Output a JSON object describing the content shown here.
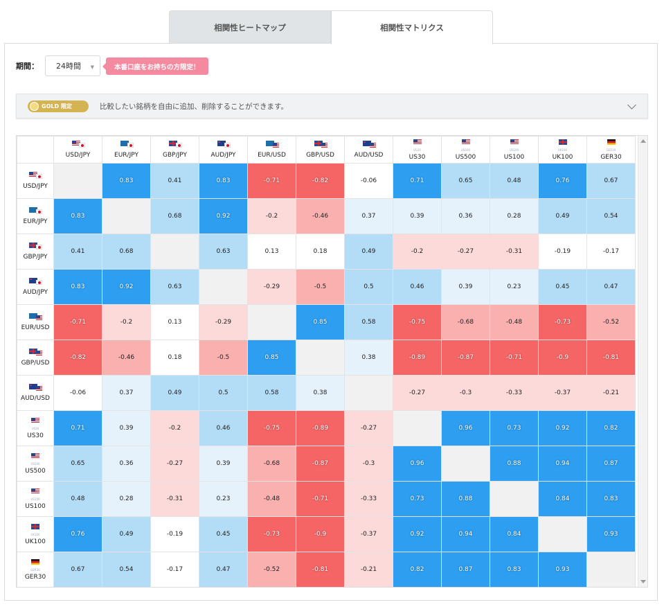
{
  "tabs": [
    {
      "label": "相関性ヒートマップ"
    },
    {
      "label": "相関性マトリクス"
    }
  ],
  "controls": {
    "period_label": "期間：",
    "period_value": "24時間",
    "live_badge": "本番口座をお持ちの方限定！"
  },
  "gold_bar": {
    "badge": "GOLD 限定",
    "text": "比較したい銘柄を自由に追加、削除することができます。"
  },
  "matrix": {
    "instruments": [
      {
        "label": "USD/JPY",
        "flags": [
          "us",
          "jp"
        ],
        "sub": ""
      },
      {
        "label": "EUR/JPY",
        "flags": [
          "eu",
          "jp"
        ],
        "sub": ""
      },
      {
        "label": "GBP/JPY",
        "flags": [
          "gb",
          "jp"
        ],
        "sub": ""
      },
      {
        "label": "AUD/JPY",
        "flags": [
          "au",
          "jp"
        ],
        "sub": ""
      },
      {
        "label": "EUR/USD",
        "flags": [
          "eu",
          "us"
        ],
        "sub": ""
      },
      {
        "label": "GBP/USD",
        "flags": [
          "gb",
          "us"
        ],
        "sub": ""
      },
      {
        "label": "AUD/USD",
        "flags": [
          "au",
          "us"
        ],
        "sub": ""
      },
      {
        "label": "US30",
        "flags": [
          "us"
        ],
        "sub": "US30"
      },
      {
        "label": "US500",
        "flags": [
          "us"
        ],
        "sub": "US500"
      },
      {
        "label": "US100",
        "flags": [
          "us"
        ],
        "sub": "US100"
      },
      {
        "label": "UK100",
        "flags": [
          "gb"
        ],
        "sub": "UK100"
      },
      {
        "label": "GER30",
        "flags": [
          "de"
        ],
        "sub": "GER30"
      }
    ],
    "values": [
      [
        null,
        "0.83",
        "0.41",
        "0.83",
        "-0.71",
        "-0.82",
        "-0.06",
        "0.71",
        "0.65",
        "0.48",
        "0.76",
        "0.67"
      ],
      [
        "0.83",
        null,
        "0.68",
        "0.92",
        "-0.2",
        "-0.46",
        "0.37",
        "0.39",
        "0.36",
        "0.28",
        "0.49",
        "0.54"
      ],
      [
        "0.41",
        "0.68",
        null,
        "0.63",
        "0.13",
        "0.18",
        "0.49",
        "-0.2",
        "-0.27",
        "-0.31",
        "-0.19",
        "-0.17"
      ],
      [
        "0.83",
        "0.92",
        "0.63",
        null,
        "-0.29",
        "-0.5",
        "0.5",
        "0.46",
        "0.39",
        "0.23",
        "0.45",
        "0.47"
      ],
      [
        "-0.71",
        "-0.2",
        "0.13",
        "-0.29",
        null,
        "0.85",
        "0.58",
        "-0.75",
        "-0.68",
        "-0.48",
        "-0.73",
        "-0.52"
      ],
      [
        "-0.82",
        "-0.46",
        "0.18",
        "-0.5",
        "0.85",
        null,
        "0.38",
        "-0.89",
        "-0.87",
        "-0.71",
        "-0.9",
        "-0.81"
      ],
      [
        "-0.06",
        "0.37",
        "0.49",
        "0.5",
        "0.58",
        "0.38",
        null,
        "-0.27",
        "-0.3",
        "-0.33",
        "-0.37",
        "-0.21"
      ],
      [
        "0.71",
        "0.39",
        "-0.2",
        "0.46",
        "-0.75",
        "-0.89",
        "-0.27",
        null,
        "0.96",
        "0.73",
        "0.92",
        "0.82"
      ],
      [
        "0.65",
        "0.36",
        "-0.27",
        "0.39",
        "-0.68",
        "-0.87",
        "-0.3",
        "0.96",
        null,
        "0.88",
        "0.94",
        "0.87"
      ],
      [
        "0.48",
        "0.28",
        "-0.31",
        "0.23",
        "-0.48",
        "-0.71",
        "-0.33",
        "0.73",
        "0.88",
        null,
        "0.84",
        "0.83"
      ],
      [
        "0.76",
        "0.49",
        "-0.19",
        "0.45",
        "-0.73",
        "-0.9",
        "-0.37",
        "0.92",
        "0.94",
        "0.84",
        null,
        "0.93"
      ],
      [
        "0.67",
        "0.54",
        "-0.17",
        "0.47",
        "-0.52",
        "-0.81",
        "-0.21",
        "0.82",
        "0.87",
        "0.83",
        "0.93",
        null
      ]
    ],
    "colors": {
      "strong_pos": "#2e9ef0",
      "mid_pos": "#b3dcf7",
      "weak_pos": "#e6f2fb",
      "neutral": "#ffffff",
      "weak_neg": "#fcdada",
      "mid_neg": "#fbb0b0",
      "strong_neg": "#f66565",
      "diagonal": "#f1f1f1"
    }
  }
}
